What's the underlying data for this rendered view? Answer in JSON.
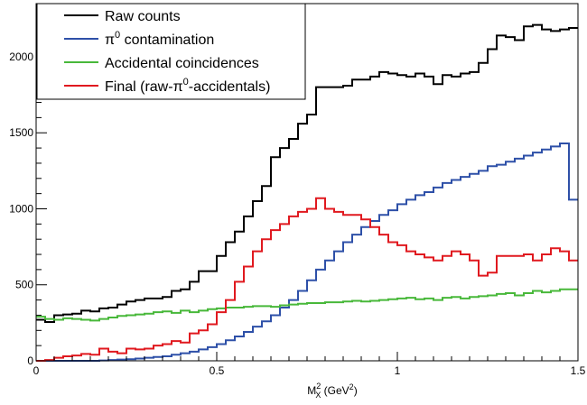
{
  "chart_data": {
    "type": "line",
    "style": "step-histogram",
    "xlabel": {
      "base": "M",
      "sup": "2",
      "sub": "X",
      "unit": " (GeV",
      "unit_sup": "2",
      "unit_close": ")"
    },
    "ylabel": "",
    "xlim": [
      0,
      1.5
    ],
    "ylim": [
      0,
      2350
    ],
    "x_ticks": [
      0,
      0.5,
      1,
      1.5
    ],
    "x_tick_labels": [
      "0",
      "0.5",
      "1",
      "1.5"
    ],
    "y_ticks": [
      0,
      500,
      1000,
      1500,
      2000
    ],
    "y_tick_labels": [
      "0",
      "500",
      "1000",
      "1500",
      "2000"
    ],
    "bin_edges_start": 0,
    "bin_width": 0.025,
    "legend_position": "top-left",
    "series": [
      {
        "name": "Raw counts",
        "color": "#000000",
        "values": [
          270,
          255,
          300,
          305,
          310,
          330,
          325,
          345,
          350,
          370,
          390,
          400,
          410,
          410,
          420,
          460,
          470,
          520,
          590,
          590,
          690,
          780,
          850,
          950,
          1050,
          1150,
          1340,
          1400,
          1460,
          1560,
          1620,
          1800,
          1800,
          1800,
          1810,
          1850,
          1850,
          1870,
          1900,
          1890,
          1880,
          1870,
          1890,
          1870,
          1820,
          1880,
          1870,
          1890,
          1900,
          1960,
          2050,
          2140,
          2130,
          2110,
          2200,
          2210,
          2180,
          2170,
          2180,
          2190
        ]
      },
      {
        "name": "π⁰ contamination",
        "color": "#2e50a8",
        "values": [
          0,
          0,
          0,
          0,
          0,
          0,
          0,
          2,
          5,
          8,
          10,
          15,
          20,
          25,
          30,
          40,
          50,
          60,
          75,
          90,
          110,
          135,
          160,
          190,
          225,
          260,
          300,
          350,
          400,
          460,
          530,
          600,
          660,
          720,
          780,
          830,
          880,
          920,
          960,
          990,
          1030,
          1060,
          1090,
          1110,
          1140,
          1170,
          1190,
          1210,
          1230,
          1250,
          1280,
          1290,
          1310,
          1330,
          1350,
          1370,
          1390,
          1410,
          1430,
          1060
        ]
      },
      {
        "name": "Accidental coincidences",
        "color": "#48b83a",
        "values": [
          290,
          275,
          270,
          280,
          275,
          270,
          265,
          275,
          285,
          295,
          300,
          305,
          310,
          320,
          325,
          315,
          330,
          320,
          330,
          340,
          345,
          350,
          350,
          355,
          360,
          360,
          355,
          365,
          370,
          375,
          380,
          380,
          385,
          385,
          390,
          395,
          390,
          395,
          400,
          405,
          410,
          415,
          405,
          410,
          400,
          415,
          420,
          410,
          420,
          425,
          430,
          440,
          445,
          430,
          445,
          460,
          450,
          460,
          470,
          470
        ]
      },
      {
        "name": "Final (raw-π⁰-accidentals)",
        "color": "#e0191f",
        "values": [
          0,
          5,
          20,
          30,
          35,
          45,
          40,
          80,
          60,
          50,
          80,
          75,
          80,
          100,
          110,
          130,
          120,
          180,
          200,
          240,
          320,
          400,
          520,
          620,
          720,
          800,
          860,
          900,
          950,
          980,
          1000,
          1070,
          1000,
          980,
          960,
          960,
          930,
          880,
          830,
          780,
          760,
          720,
          700,
          680,
          660,
          690,
          720,
          700,
          660,
          560,
          580,
          690,
          690,
          690,
          700,
          660,
          700,
          740,
          720,
          660
        ]
      }
    ]
  },
  "legend": {
    "items": [
      {
        "label": "Raw counts",
        "color": "#000000"
      },
      {
        "label_prefix": "π",
        "label_sup": "0",
        "label_suffix": " contamination",
        "color": "#2e50a8"
      },
      {
        "label": "Accidental coincidences",
        "color": "#48b83a"
      },
      {
        "label_prefix": "Final (raw-π",
        "label_sup": "0",
        "label_suffix": "-accidentals)",
        "color": "#e0191f"
      }
    ]
  }
}
